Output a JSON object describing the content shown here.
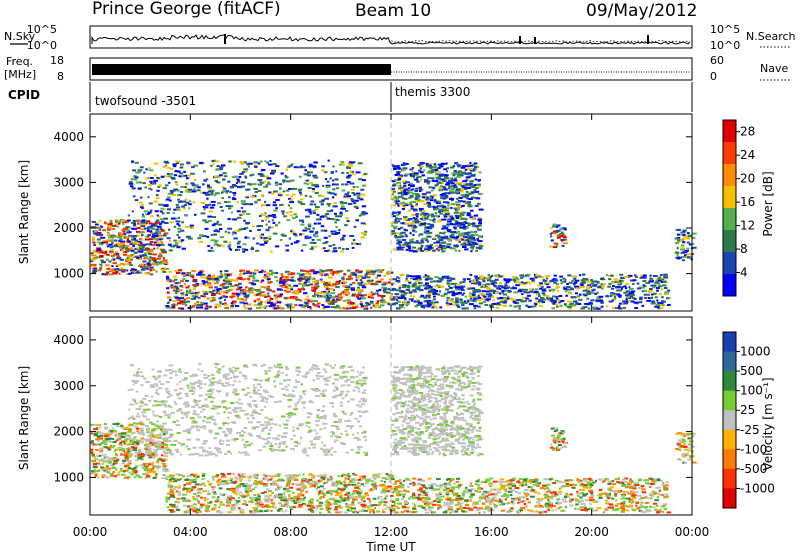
{
  "header": {
    "station": "Prince George (fitACF)",
    "beam": "Beam 10",
    "date": "09/May/2012"
  },
  "top_panels": {
    "nsky": {
      "label": "N.Sky",
      "ticks": [
        "10^5",
        "10^0"
      ],
      "right_label": "N.Search",
      "right_ticks": [
        "10^5",
        "10^0"
      ]
    },
    "freq": {
      "label_line1": "Freq.",
      "label_line2": "[MHz]",
      "ticks": [
        "18",
        "8"
      ],
      "right_label": "Nave",
      "right_ticks": [
        "60",
        "0"
      ]
    },
    "cpid": {
      "label": "CPID",
      "modes": [
        {
          "name": "twofsound -3501",
          "start_hour": 0,
          "end_hour": 12
        },
        {
          "name": "themis 3300",
          "start_hour": 12,
          "end_hour": 24
        }
      ]
    }
  },
  "chart_data": [
    {
      "type": "heatmap",
      "title": "",
      "quantity": "Power",
      "ylabel": "Slant Range [km]",
      "xlabel": "",
      "xlim": [
        0,
        24
      ],
      "ylim": [
        180,
        4500
      ],
      "yticks": [
        "1000",
        "2000",
        "3000",
        "4000"
      ],
      "colorbar": {
        "label": "Power [dB]",
        "ticks": [
          "4",
          "8",
          "12",
          "16",
          "20",
          "24",
          "28"
        ],
        "range": [
          0,
          30
        ],
        "colors": [
          "#0000ff",
          "#1a44b4",
          "#2e7a4a",
          "#53b04a",
          "#f5c000",
          "#ff8c00",
          "#ff3a00",
          "#e00000"
        ]
      },
      "echo_regions": [
        {
          "from_hour": 0.0,
          "to_hour": 3.0,
          "range_km": [
            1000,
            2200
          ],
          "level": "high"
        },
        {
          "from_hour": 3.0,
          "to_hour": 12.0,
          "range_km": [
            250,
            1100
          ],
          "level": "high"
        },
        {
          "from_hour": 1.5,
          "to_hour": 11.0,
          "range_km": [
            1500,
            3500
          ],
          "level": "low"
        },
        {
          "from_hour": 12.0,
          "to_hour": 15.5,
          "range_km": [
            1500,
            3450
          ],
          "level": "low"
        },
        {
          "from_hour": 12.0,
          "to_hour": 23.0,
          "range_km": [
            250,
            1000
          ],
          "level": "low"
        },
        {
          "from_hour": 18.3,
          "to_hour": 18.9,
          "range_km": [
            1600,
            2100
          ],
          "level": "high"
        },
        {
          "from_hour": 23.3,
          "to_hour": 24.0,
          "range_km": [
            1300,
            2000
          ],
          "level": "mid"
        }
      ]
    },
    {
      "type": "heatmap",
      "title": "",
      "quantity": "Velocity",
      "ylabel": "Slant Range [km]",
      "xlabel": "Time UT",
      "xlim": [
        0,
        24
      ],
      "ylim": [
        180,
        4500
      ],
      "xticks": [
        "00:00",
        "04:00",
        "08:00",
        "12:00",
        "16:00",
        "20:00",
        "00:00"
      ],
      "yticks": [
        "1000",
        "2000",
        "3000",
        "4000"
      ],
      "colorbar": {
        "label": "Velocity [m s⁻¹]",
        "ticks": [
          "1000",
          "500",
          "100",
          "25",
          "-25",
          "-100",
          "-500",
          "-1000"
        ],
        "colors": [
          "#1a3fb0",
          "#2e6a9a",
          "#2e8a3a",
          "#77cc33",
          "#c0c0c0",
          "#ffb000",
          "#ff7a00",
          "#ff3000",
          "#e00000"
        ]
      },
      "echo_regions": [
        {
          "from_hour": 0.0,
          "to_hour": 3.0,
          "range_km": [
            1000,
            2200
          ],
          "level": "mixed"
        },
        {
          "from_hour": 3.0,
          "to_hour": 12.0,
          "range_km": [
            250,
            1100
          ],
          "level": "mixed"
        },
        {
          "from_hour": 1.5,
          "to_hour": 11.0,
          "range_km": [
            1500,
            3500
          ],
          "level": "grey"
        },
        {
          "from_hour": 12.0,
          "to_hour": 15.5,
          "range_km": [
            1500,
            3450
          ],
          "level": "grey"
        },
        {
          "from_hour": 12.0,
          "to_hour": 23.0,
          "range_km": [
            250,
            1000
          ],
          "level": "mixed"
        },
        {
          "from_hour": 18.3,
          "to_hour": 18.9,
          "range_km": [
            1600,
            2100
          ],
          "level": "mixed"
        },
        {
          "from_hour": 23.3,
          "to_hour": 24.0,
          "range_km": [
            1300,
            2000
          ],
          "level": "mixed"
        }
      ]
    }
  ]
}
